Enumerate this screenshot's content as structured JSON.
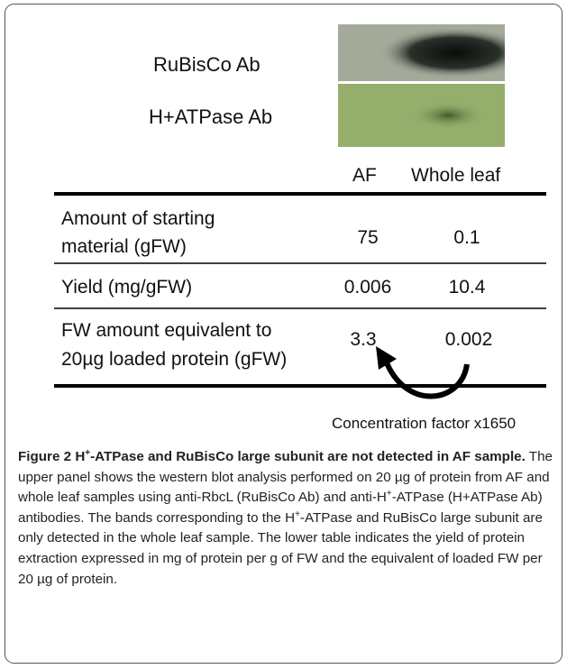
{
  "blot": {
    "rows": [
      "RuBisCo Ab",
      "H+ATPase Ab"
    ]
  },
  "table": {
    "columns": [
      "AF",
      "Whole leaf"
    ],
    "rows": [
      {
        "label": [
          "Amount of starting",
          "material (gFW)"
        ],
        "values": [
          "75",
          "0.1"
        ]
      },
      {
        "label": [
          "Yield (mg/gFW)"
        ],
        "values": [
          "0.006",
          "10.4"
        ]
      },
      {
        "label": [
          "FW amount equivalent to",
          "20µg loaded  protein (gFW)"
        ],
        "values": [
          "3.3",
          "0.002"
        ]
      }
    ],
    "note": "Concentration factor x1650"
  },
  "caption": {
    "label": "Figure 2",
    "title_parts": [
      "H",
      "+",
      "-ATPase and RuBisCo large subunit are not detected in AF sample."
    ],
    "body_parts": [
      "The upper panel shows the western blot analysis performed on 20 µg of protein from AF and whole leaf samples using anti-RbcL (RuBisCo Ab) and anti-H",
      "+",
      "-ATPase (H+ATPase Ab) antibodies. The bands corresponding to the H",
      "+",
      "-ATPase and RuBisCo large subunit are only detected in the whole leaf sample. The lower table indicates the yield of protein extraction expressed in mg of protein per g of FW and the equivalent of loaded FW per 20 µg of protein."
    ]
  }
}
